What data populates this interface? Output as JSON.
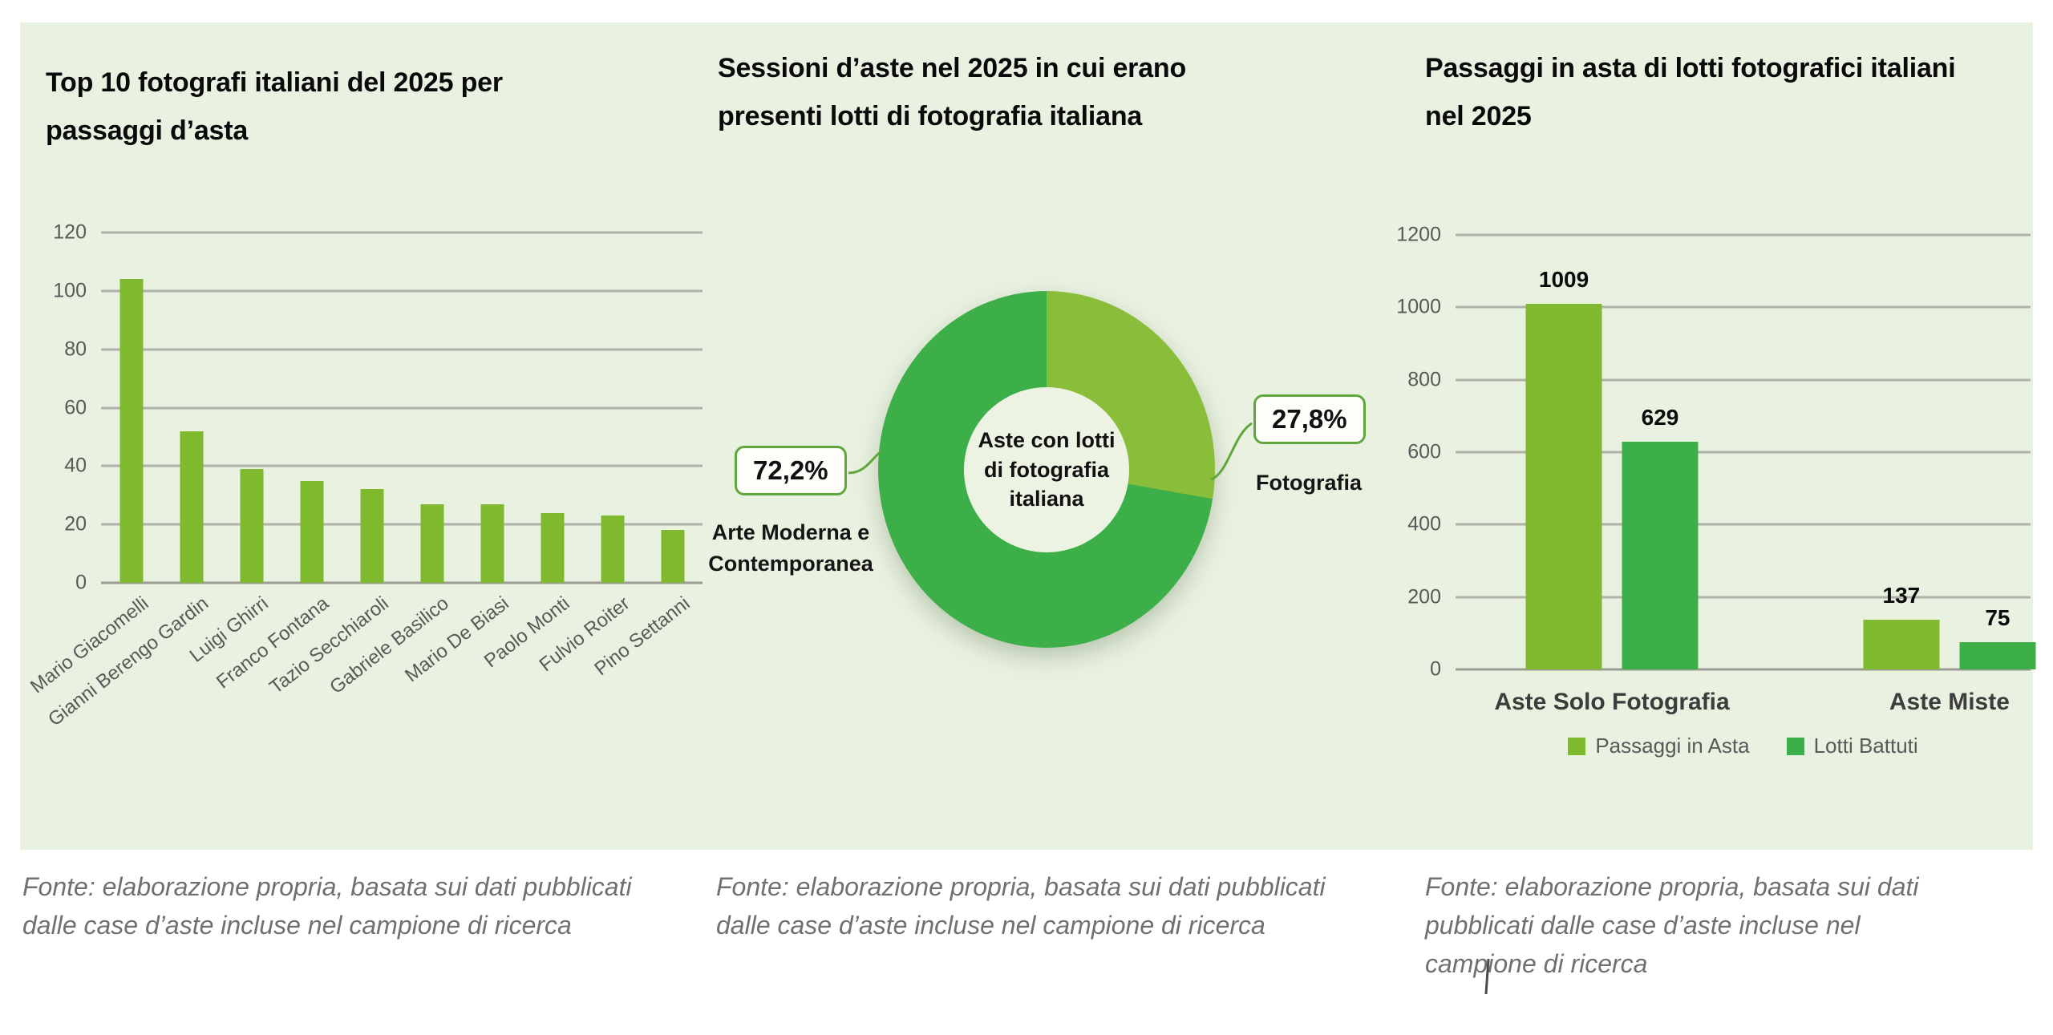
{
  "captions": [
    "Fonte: elaborazione propria, basata sui dati pubblicati dalle case d’aste incluse nel campione di ricerca",
    "Fonte: elaborazione propria, basata sui dati pubblicati dalle case d’aste incluse nel campione di ricerca",
    "Fonte: elaborazione propria, basata sui dati pubblicati dalle case d’aste incluse nel campione di ricerca"
  ],
  "colors": {
    "panel_background": "#e9f1e0",
    "light_green": "#7eb92e",
    "dark_green": "#3daf48",
    "donut_light": "#8abd3a",
    "gridline": "#b0b2aa",
    "tick_text": "#595959",
    "caption_text": "#6d7170",
    "callout_border": "#5fa73d"
  },
  "chart_data": [
    {
      "type": "bar",
      "title": "Top 10 fotografi italiani del 2025 per passaggi d’asta",
      "categories": [
        "Mario Giacomelli",
        "Gianni Berengo Gardin",
        "Luigi Ghirri",
        "Franco Fontana",
        "Tazio Secchiaroli",
        "Gabriele Basilico",
        "Mario De Biasi",
        "Paolo Monti",
        "Fulvio Roiter",
        "Pino Settanni"
      ],
      "values": [
        104,
        52,
        39,
        35,
        32,
        27,
        27,
        24,
        23,
        18
      ],
      "xlabel": "",
      "ylabel": "",
      "ylim": [
        0,
        120
      ],
      "ytick_step": 20,
      "grid": true,
      "bar_color": "#7eb92e",
      "legend_position": "none"
    },
    {
      "type": "pie",
      "donut": true,
      "title": "Sessioni d’aste nel  2025 in cui erano presenti lotti di fotografia italiana",
      "center_label": "Aste con lotti di fotografia italiana",
      "slices": [
        {
          "label": "Arte Moderna e Contemporanea",
          "value": 72.2,
          "value_label": "72,2%",
          "color": "#3daf48"
        },
        {
          "label": "Fotografia",
          "value": 27.8,
          "value_label": "27,8%",
          "color": "#8abd3a"
        }
      ],
      "start_angle_deg": 0,
      "direction": "clockwise"
    },
    {
      "type": "bar",
      "title": "Passaggi in asta di lotti fotografici italiani nel 2025",
      "categories": [
        "Aste Solo Fotografia",
        "Aste Miste"
      ],
      "series": [
        {
          "name": "Passaggi in Asta",
          "color": "#7eb92e",
          "values": [
            1009,
            137
          ]
        },
        {
          "name": "Lotti Battuti",
          "color": "#3daf48",
          "values": [
            629,
            75
          ]
        }
      ],
      "xlabel": "",
      "ylabel": "",
      "ylim": [
        0,
        1200
      ],
      "ytick_step": 200,
      "grid": true,
      "data_labels": [
        [
          1009,
          137
        ],
        [
          629,
          75
        ]
      ],
      "legend_position": "bottom"
    }
  ]
}
